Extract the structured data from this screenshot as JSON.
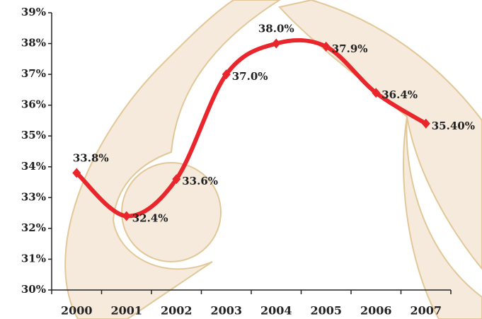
{
  "chart_data": {
    "type": "line",
    "categories": [
      "2000",
      "2001",
      "2002",
      "2003",
      "2004",
      "2005",
      "2006",
      "2007"
    ],
    "values": [
      33.8,
      32.4,
      33.6,
      37.0,
      38.0,
      37.9,
      36.4,
      35.4
    ],
    "value_labels": [
      "33.8%",
      "32.4%",
      "33.6%",
      "37.0%",
      "38.0%",
      "37.9%",
      "36.4%",
      "35.40%"
    ],
    "color": "#e8262b",
    "ylim": [
      30,
      39
    ],
    "yticks": [
      {
        "value": 30,
        "label": "30%"
      },
      {
        "value": 31,
        "label": "31%"
      },
      {
        "value": 32,
        "label": "32%"
      },
      {
        "value": 33,
        "label": "33%"
      },
      {
        "value": 34,
        "label": "34%"
      },
      {
        "value": 35,
        "label": "35%"
      },
      {
        "value": 36,
        "label": "36%"
      },
      {
        "value": 37,
        "label": "37%"
      },
      {
        "value": 38,
        "label": "38%"
      },
      {
        "value": 39,
        "label": "39%"
      }
    ]
  }
}
